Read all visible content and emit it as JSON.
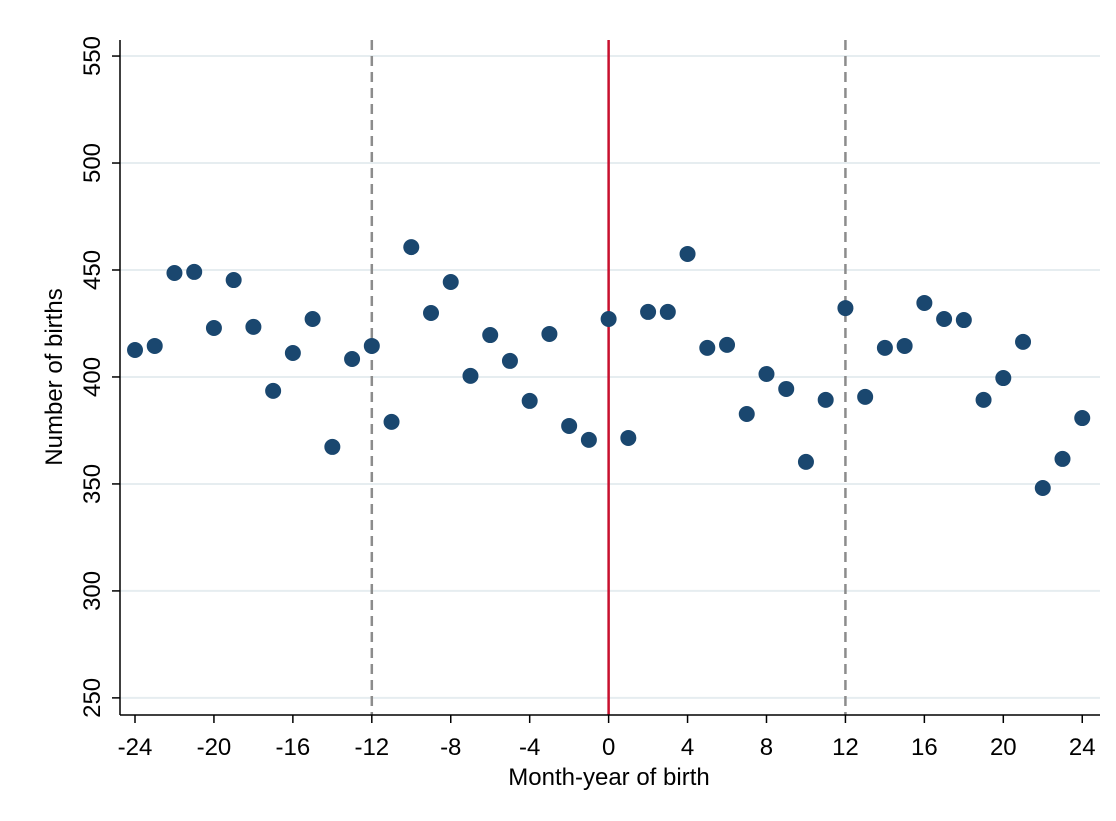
{
  "chart_data": {
    "type": "scatter",
    "x_label": "Month-year of birth",
    "y_label": "Number of births",
    "x": [
      -24,
      -23,
      -22,
      -21,
      -20,
      -19,
      -18,
      -17,
      -16,
      -15,
      -14,
      -13,
      -12,
      -11,
      -10,
      -9,
      -8,
      -7,
      -6,
      -5,
      -4,
      -3,
      -2,
      -1,
      0,
      1,
      2,
      3,
      4,
      5,
      6,
      7,
      8,
      9,
      10,
      11,
      12,
      13,
      14,
      15,
      16,
      17,
      18,
      19,
      20,
      21,
      22,
      23,
      24
    ],
    "series": [
      {
        "color": "#1a476f",
        "values": [
          412.6,
          414.5,
          448.6,
          449.1,
          422.9,
          445.3,
          423.4,
          393.5,
          411.2,
          427.1,
          367.3,
          408.4,
          414.5,
          379,
          460.7,
          429.9,
          444.4,
          400.5,
          419.6,
          407.5,
          388.8,
          420.1,
          377.1,
          370.6,
          427.1,
          371.5,
          430.4,
          430.4,
          457.5,
          413.6,
          415,
          382.7,
          401.4,
          394.4,
          360.3,
          389.3,
          432.2,
          390.7,
          413.6,
          414.5,
          434.6,
          427.1,
          426.6,
          389.3,
          399.5,
          416.4,
          348.1,
          361.7,
          380.8
        ]
      }
    ],
    "xlim": [
      -24.76,
      24.9
    ],
    "ylim": [
      242,
      557.5
    ],
    "xticks": [
      -24,
      -20,
      -16,
      -12,
      -8,
      -4,
      0,
      4,
      8,
      12,
      16,
      20,
      24
    ],
    "yticks": [
      250,
      300,
      350,
      400,
      450,
      500,
      550
    ],
    "grid": true,
    "reference_lines": [
      {
        "x": -12,
        "style": "dashed",
        "color": "#8c8c8c"
      },
      {
        "x": 0,
        "style": "solid",
        "color": "#c8102e"
      },
      {
        "x": 12,
        "style": "dashed",
        "color": "#8c8c8c"
      }
    ]
  }
}
